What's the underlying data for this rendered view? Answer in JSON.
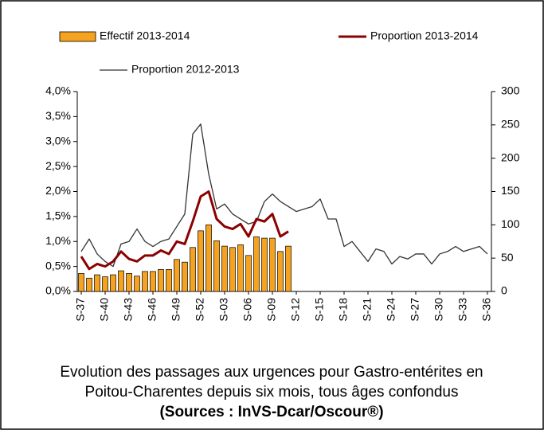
{
  "chart_data": {
    "type": "combo",
    "title": [
      "Evolution des passages aux urgences pour Gastro-entérites en",
      "Poitou-Charentes depuis six mois, tous âges confondus",
      "(Sources : InVS-Dcar/Oscour®)"
    ],
    "categories": [
      "S-37",
      null,
      null,
      "S-40",
      null,
      null,
      "S-43",
      null,
      null,
      "S-46",
      null,
      null,
      "S-49",
      null,
      null,
      "S-52",
      null,
      null,
      "S-03",
      null,
      null,
      "S-06",
      null,
      null,
      "S-09",
      null,
      null,
      "S-12",
      null,
      null,
      "S-15",
      null,
      null,
      "S-18",
      null,
      null,
      "S-21",
      null,
      null,
      "S-24",
      null,
      null,
      "S-27",
      null,
      null,
      "S-30",
      null,
      null,
      "S-33",
      null,
      null,
      "S-36"
    ],
    "series": [
      {
        "name": "Effectif 2013-2014",
        "kind": "bar",
        "axis": "y2",
        "color": "#f4a21f",
        "values": [
          27,
          20,
          25,
          22,
          25,
          31,
          27,
          23,
          30,
          30,
          33,
          33,
          48,
          44,
          66,
          91,
          100,
          76,
          68,
          66,
          70,
          54,
          82,
          80,
          80,
          60,
          68,
          null,
          null,
          null,
          null,
          null,
          null,
          null,
          null,
          null,
          null,
          null,
          null,
          null,
          null,
          null,
          null,
          null,
          null,
          null,
          null,
          null,
          null,
          null,
          null,
          null
        ]
      },
      {
        "name": "Proportion 2013-2014",
        "kind": "line",
        "axis": "y",
        "color": "#8b0000",
        "values": [
          0.7,
          0.45,
          0.55,
          0.5,
          0.6,
          0.8,
          0.65,
          0.6,
          0.72,
          0.72,
          0.82,
          0.75,
          1.0,
          0.95,
          1.4,
          1.9,
          2.0,
          1.45,
          1.3,
          1.25,
          1.35,
          1.1,
          1.45,
          1.4,
          1.55,
          1.1,
          1.2,
          null,
          null,
          null,
          null,
          null,
          null,
          null,
          null,
          null,
          null,
          null,
          null,
          null,
          null,
          null,
          null,
          null,
          null,
          null,
          null,
          null,
          null,
          null,
          null,
          null
        ]
      },
      {
        "name": "Proportion 2012-2013",
        "kind": "line",
        "axis": "y",
        "color": "#333333",
        "values": [
          0.8,
          1.05,
          0.75,
          0.6,
          0.5,
          0.95,
          1.0,
          1.25,
          1.0,
          0.9,
          1.0,
          1.05,
          1.3,
          1.55,
          3.15,
          3.35,
          2.35,
          1.65,
          1.75,
          1.55,
          1.45,
          1.35,
          1.4,
          1.8,
          1.95,
          1.8,
          1.7,
          1.6,
          1.65,
          1.7,
          1.85,
          1.45,
          1.45,
          0.9,
          1.0,
          0.8,
          0.6,
          0.85,
          0.8,
          0.55,
          0.7,
          0.65,
          0.75,
          0.75,
          0.55,
          0.75,
          0.8,
          0.9,
          0.8,
          0.85,
          0.9,
          0.75
        ]
      }
    ],
    "ylim": [
      0,
      4
    ],
    "yticks": [
      {
        "value": 0,
        "label": "0,0%"
      },
      {
        "value": 0.5,
        "label": "0,5%"
      },
      {
        "value": 1,
        "label": "1,0%"
      },
      {
        "value": 1.5,
        "label": "1,5%"
      },
      {
        "value": 2,
        "label": "2,0%"
      },
      {
        "value": 2.5,
        "label": "2,5%"
      },
      {
        "value": 3,
        "label": "3,0%"
      },
      {
        "value": 3.5,
        "label": "3,5%"
      },
      {
        "value": 4,
        "label": "4,0%"
      }
    ],
    "y2lim": [
      0,
      300
    ],
    "y2ticks": [
      0,
      50,
      100,
      150,
      200,
      250,
      300
    ]
  }
}
